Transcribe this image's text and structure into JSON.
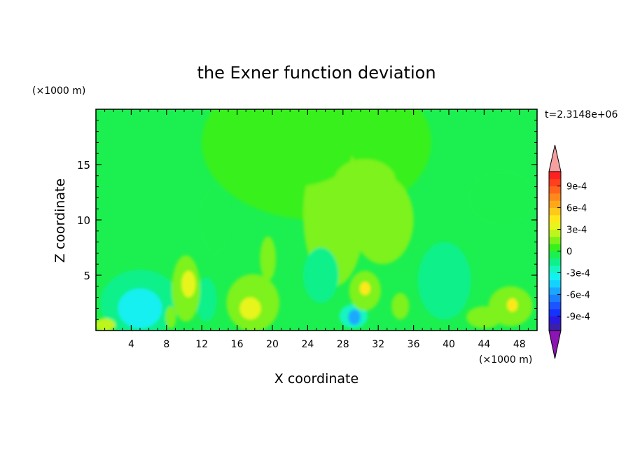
{
  "chart_data": {
    "type": "heatmap",
    "title": "the Exner function deviation",
    "xlabel": "X coordinate",
    "ylabel": "Z coordinate",
    "x_unit": "(×1000 m)",
    "y_unit": "(×1000 m)",
    "time_label": "t=2.3148e+06",
    "xlim": [
      0,
      50
    ],
    "ylim": [
      0,
      20
    ],
    "x_ticks": [
      4,
      8,
      12,
      16,
      20,
      24,
      28,
      32,
      36,
      40,
      44,
      48
    ],
    "x_tick_labels": [
      "4",
      "8",
      "12",
      "16",
      "20",
      "24",
      "28",
      "32",
      "36",
      "40",
      "44",
      "48"
    ],
    "y_ticks": [
      5,
      10,
      15
    ],
    "y_tick_labels": [
      "5",
      "10",
      "15"
    ],
    "colorbar": {
      "levels": [
        -0.0011,
        -0.001,
        -0.0009,
        -0.0008,
        -0.0007,
        -0.0006,
        -0.0005,
        -0.0004,
        -0.0003,
        -0.0002,
        -0.0001,
        0,
        0.0001,
        0.0002,
        0.0003,
        0.0004,
        0.0005,
        0.0006,
        0.0007,
        0.0008,
        0.0009,
        0.001,
        0.0011
      ],
      "colors": [
        "#3a1fa8",
        "#2a1ae0",
        "#1532ff",
        "#1a55ff",
        "#1a80ff",
        "#1aa8ff",
        "#14d2ff",
        "#14f0f0",
        "#16f5c0",
        "#10f08a",
        "#1cf050",
        "#38f01c",
        "#7df21a",
        "#bdf51c",
        "#e8f51c",
        "#ffe81a",
        "#ffc81a",
        "#ffa81a",
        "#ff881c",
        "#ff641c",
        "#ff401c",
        "#ff2020"
      ],
      "under_color": "#8c14b4",
      "over_color": "#f5a0a0",
      "tick_values": [
        0.0009,
        0.0006,
        0.0003,
        0,
        -0.0003,
        -0.0006,
        -0.0009
      ],
      "tick_labels": [
        "9e-4",
        "6e-4",
        "3e-4",
        "0",
        "-3e-4",
        "-6e-4",
        "-9e-4"
      ]
    },
    "background_value": -5e-05,
    "features": [
      {
        "cx": 25,
        "cy": 17,
        "rx": 13,
        "ry": 7,
        "value": 3e-05
      },
      {
        "cx": 27,
        "cy": 10.5,
        "rx": 3.5,
        "ry": 6.5,
        "value": 0.0001
      },
      {
        "cx": 32.5,
        "cy": 10,
        "rx": 3.5,
        "ry": 4,
        "value": 0.0001
      },
      {
        "cx": 46,
        "cy": 12,
        "rx": 4,
        "ry": 2.5,
        "value": -5e-05
      },
      {
        "cx": 22,
        "cy": 16,
        "rx": 7,
        "ry": 3,
        "value": 3e-05
      },
      {
        "cx": 30.5,
        "cy": 13.5,
        "rx": 3.5,
        "ry": 2,
        "value": 0.00012
      },
      {
        "cx": 13.5,
        "cy": 10,
        "rx": 1.8,
        "ry": 3.2,
        "value": -8e-05
      },
      {
        "cx": 39.5,
        "cy": 4.5,
        "rx": 3,
        "ry": 3.5,
        "value": -0.00015
      },
      {
        "cx": 25.5,
        "cy": 5,
        "rx": 2,
        "ry": 2.5,
        "value": -0.00013
      },
      {
        "cx": 5,
        "cy": 2.5,
        "rx": 4.5,
        "ry": 3,
        "value": -0.00015
      },
      {
        "cx": 5,
        "cy": 2,
        "rx": 2.5,
        "ry": 1.8,
        "value": -0.00032
      },
      {
        "cx": 12.5,
        "cy": 2.8,
        "rx": 1.2,
        "ry": 2,
        "value": -0.00016
      },
      {
        "cx": 10.2,
        "cy": 3.8,
        "rx": 1.6,
        "ry": 3,
        "value": 0.00018
      },
      {
        "cx": 10.5,
        "cy": 4.2,
        "rx": 0.8,
        "ry": 1.2,
        "value": 0.00035
      },
      {
        "cx": 8.5,
        "cy": 1.2,
        "rx": 0.6,
        "ry": 1,
        "value": 0.00015
      },
      {
        "cx": 17.8,
        "cy": 2.5,
        "rx": 3,
        "ry": 2.6,
        "value": 0.00018
      },
      {
        "cx": 19.5,
        "cy": 6.5,
        "rx": 0.9,
        "ry": 2,
        "value": 0.00016
      },
      {
        "cx": 17.5,
        "cy": 2,
        "rx": 1.2,
        "ry": 1,
        "value": 0.00035
      },
      {
        "cx": 1,
        "cy": 0.5,
        "rx": 1.2,
        "ry": 0.6,
        "value": 0.0002
      },
      {
        "cx": 29.2,
        "cy": 1.3,
        "rx": 1.6,
        "ry": 1.1,
        "value": -0.0003
      },
      {
        "cx": 29.3,
        "cy": 1.2,
        "rx": 0.7,
        "ry": 0.7,
        "value": -0.00055
      },
      {
        "cx": 30.5,
        "cy": 3.6,
        "rx": 1.8,
        "ry": 1.8,
        "value": 0.00018
      },
      {
        "cx": 30.5,
        "cy": 3.8,
        "rx": 0.6,
        "ry": 0.6,
        "value": 0.0004
      },
      {
        "cx": 34.5,
        "cy": 2.2,
        "rx": 1,
        "ry": 1.2,
        "value": 0.00018
      },
      {
        "cx": 47,
        "cy": 2.2,
        "rx": 2.5,
        "ry": 1.8,
        "value": 0.00018
      },
      {
        "cx": 47.2,
        "cy": 2.3,
        "rx": 0.6,
        "ry": 0.6,
        "value": 0.0004
      },
      {
        "cx": 44,
        "cy": 1.2,
        "rx": 2,
        "ry": 1,
        "value": 0.0001
      },
      {
        "cx": 36.5,
        "cy": 7.5,
        "rx": 0.35,
        "ry": 0.35,
        "value": -0.0001
      }
    ]
  }
}
